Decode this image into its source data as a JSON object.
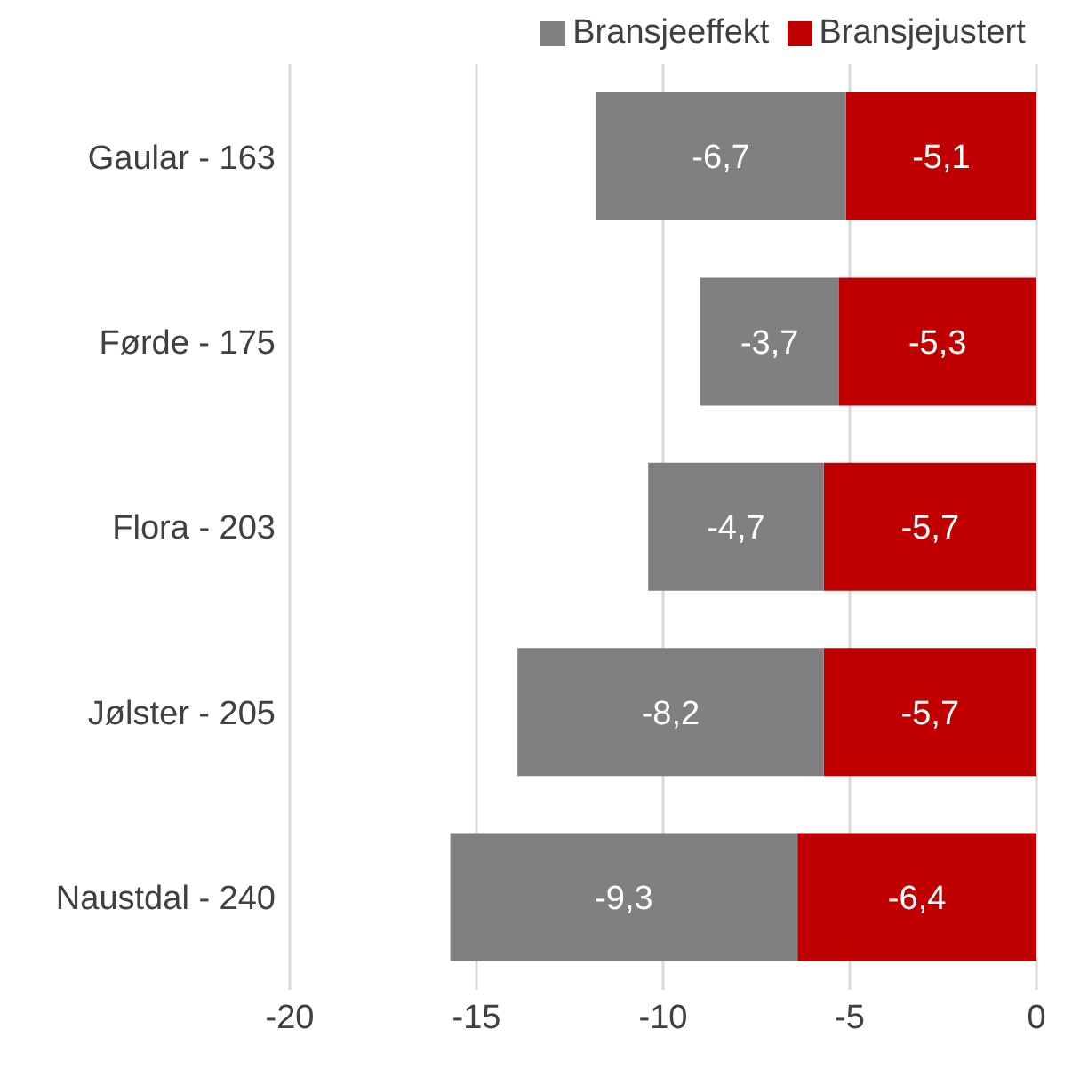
{
  "chart_data": {
    "type": "bar",
    "orientation": "horizontal",
    "stacked": true,
    "categories": [
      "Gaular - 163",
      "Førde - 175",
      "Flora - 203",
      "Jølster - 205",
      "Naustdal - 240"
    ],
    "series": [
      {
        "name": "Bransjejustert",
        "color": "#c00000",
        "values": [
          -5.1,
          -5.3,
          -5.7,
          -5.7,
          -6.4
        ],
        "value_labels": [
          "-5,1",
          "-5,3",
          "-5,7",
          "-5,7",
          "-6,4"
        ]
      },
      {
        "name": "Bransjeeffekt",
        "color": "#808080",
        "values": [
          -6.7,
          -3.7,
          -4.7,
          -8.2,
          -9.3
        ],
        "value_labels": [
          "-6,7",
          "-3,7",
          "-4,7",
          "-8,2",
          "-9,3"
        ]
      }
    ],
    "xlim": [
      -20,
      0
    ],
    "xticks": [
      -20,
      -15,
      -10,
      -5,
      0
    ],
    "grid": "x",
    "legend": "top"
  }
}
